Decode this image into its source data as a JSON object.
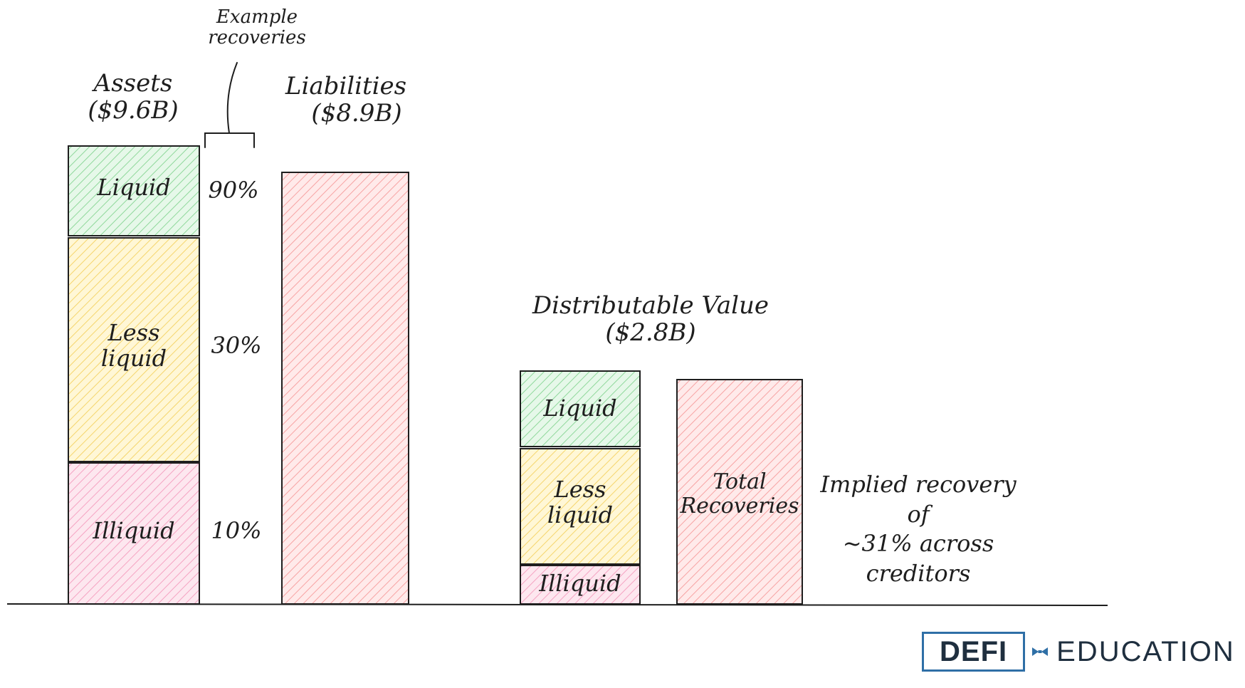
{
  "colors": {
    "liquid": "#b2f2bb",
    "liquid_stroke": "#2f9e44",
    "less_liquid": "#ffec99",
    "less_liquid_stroke": "#e0a800",
    "illiquid": "#fcc2d7",
    "illiquid_stroke": "#c2255c",
    "liability": "#ffc9c9",
    "liability_stroke": "#e03131",
    "ink": "#1e1e1e",
    "logo_blue": "#2f6fa6"
  },
  "assets": {
    "title": "Assets",
    "amount": "($9.6B)",
    "segments": [
      {
        "label": [
          "Liquid"
        ],
        "recovery": "90%",
        "color": "liquid"
      },
      {
        "label": [
          "Less",
          "liquid"
        ],
        "recovery": "30%",
        "color": "less_liquid"
      },
      {
        "label": [
          "Illiquid"
        ],
        "recovery": "10%",
        "color": "illiquid"
      }
    ]
  },
  "example_recoveries": [
    "Example",
    "recoveries"
  ],
  "liabilities": {
    "title": "Liabilities",
    "amount": "($8.9B)"
  },
  "distributable": {
    "title": "Distributable Value",
    "amount": "($2.8B)",
    "segments": [
      {
        "label": [
          "Liquid"
        ],
        "color": "liquid"
      },
      {
        "label": [
          "Less",
          "liquid"
        ],
        "color": "less_liquid"
      },
      {
        "label": [
          "Illiquid"
        ],
        "color": "illiquid"
      }
    ]
  },
  "total_recoveries": [
    "Total",
    "Recoveries"
  ],
  "implied": [
    "Implied recovery",
    "of",
    "~31% across",
    "creditors"
  ],
  "logo": {
    "left": "DEFI",
    "right": "EDUCATION"
  }
}
